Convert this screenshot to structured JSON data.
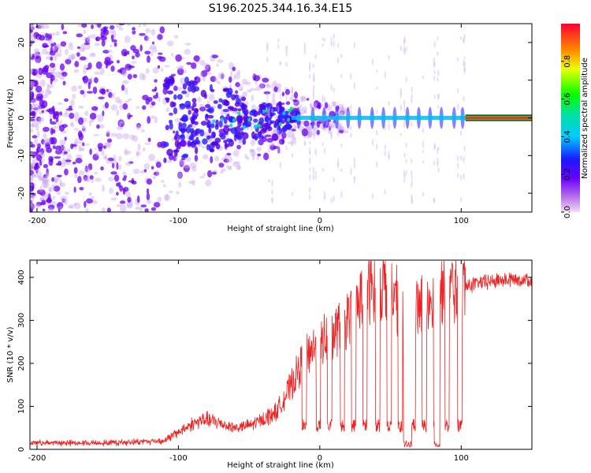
{
  "figure": {
    "title": "S196.2025.344.16.34.E15"
  },
  "colors": {
    "trace": "#ee2222",
    "line": "#000000",
    "bg": "#ffffff"
  },
  "chart_data": [
    {
      "type": "heatmap",
      "title": "S196.2025.344.16.34.E15",
      "xlabel": "Height of straight line (km)",
      "ylabel": "Frequency (Hz)",
      "xlim": [
        -205,
        150
      ],
      "ylim": [
        -25,
        25
      ],
      "xticks": [
        -200,
        -100,
        0,
        100
      ],
      "yticks": [
        -20,
        -10,
        0,
        10,
        20
      ],
      "colorbar": {
        "label": "Normalized spectral amplitude",
        "range": [
          0,
          1
        ],
        "ticks": [
          "0.0",
          "0.2",
          "0.4",
          "0.6",
          "0.8"
        ],
        "tick_values": [
          0,
          0.2,
          0.4,
          0.6,
          0.8
        ],
        "colormap": "violet-blue-cyan-green-yellow-red"
      },
      "description_points": {
        "band_center_hz": 0,
        "carrier_visible_from_km": -20,
        "strong_tone_from_km": 103
      }
    },
    {
      "type": "line",
      "xlabel": "Height of straight line (km)",
      "ylabel": "SNR (10 * v/v)",
      "xlim": [
        -205,
        150
      ],
      "ylim": [
        0,
        440
      ],
      "xticks": [
        -200,
        -100,
        0,
        100
      ],
      "yticks": [
        0,
        100,
        200,
        300,
        400
      ],
      "series": [
        {
          "name": "SNR",
          "x": [
            -205,
            -150,
            -110,
            -100,
            -90,
            -80,
            -70,
            -60,
            -50,
            -40,
            -30,
            -20,
            -10,
            0,
            10,
            20,
            30,
            40,
            50,
            60,
            70,
            80,
            90,
            103,
            110,
            120,
            130,
            140,
            150
          ],
          "y": [
            15,
            15,
            20,
            40,
            60,
            70,
            60,
            50,
            55,
            70,
            90,
            150,
            220,
            250,
            270,
            300,
            360,
            380,
            385,
            300,
            330,
            360,
            370,
            380,
            385,
            390,
            395,
            395,
            395
          ]
        }
      ]
    }
  ]
}
